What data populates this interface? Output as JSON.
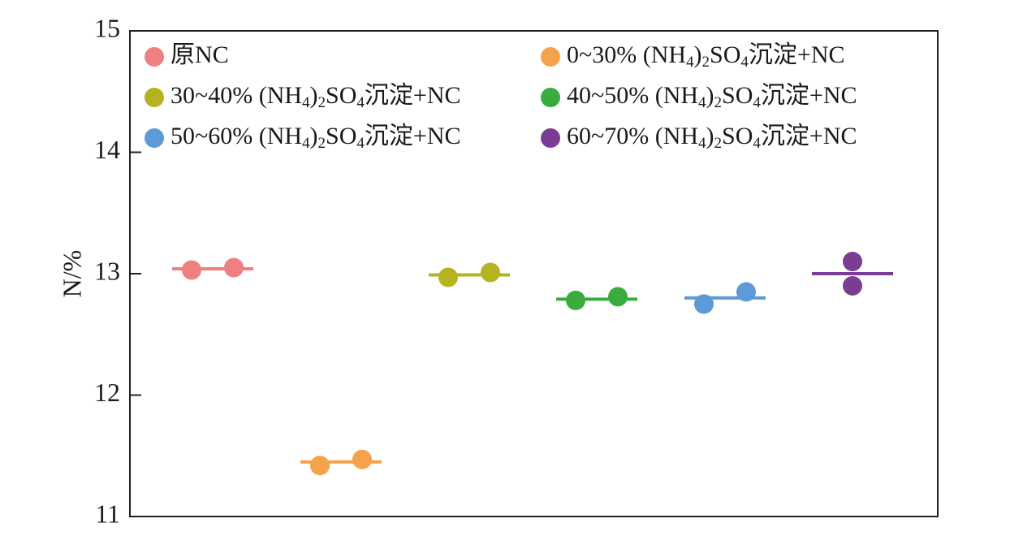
{
  "chart_data": {
    "type": "scatter",
    "ylabel": "N/%",
    "xlabel": "",
    "ylim": [
      11,
      15
    ],
    "yticks": [
      "11",
      "12",
      "13",
      "14",
      "15"
    ],
    "grid": false,
    "legend_position": "top",
    "series": [
      {
        "name_parts": [
          {
            "t": "原NC",
            "sub": false
          }
        ],
        "color": "#ef7f80",
        "points": [
          13.03,
          13.05
        ],
        "mean": 13.04
      },
      {
        "name_parts": [
          {
            "t": "0~30% (NH",
            "sub": false
          },
          {
            "t": "4",
            "sub": true
          },
          {
            "t": ")",
            "sub": false
          },
          {
            "t": "2",
            "sub": true
          },
          {
            "t": "SO",
            "sub": false
          },
          {
            "t": "4",
            "sub": true
          },
          {
            "t": "沉淀+NC",
            "sub": false
          }
        ],
        "color": "#f4a24b",
        "points": [
          11.42,
          11.47
        ],
        "mean": 11.45
      },
      {
        "name_parts": [
          {
            "t": "30~40% (NH",
            "sub": false
          },
          {
            "t": "4",
            "sub": true
          },
          {
            "t": ")",
            "sub": false
          },
          {
            "t": "2",
            "sub": true
          },
          {
            "t": "SO",
            "sub": false
          },
          {
            "t": "4",
            "sub": true
          },
          {
            "t": "沉淀+NC",
            "sub": false
          }
        ],
        "color": "#b5b322",
        "points": [
          12.97,
          13.01
        ],
        "mean": 12.99
      },
      {
        "name_parts": [
          {
            "t": "40~50% (NH",
            "sub": false
          },
          {
            "t": "4",
            "sub": true
          },
          {
            "t": ")",
            "sub": false
          },
          {
            "t": "2",
            "sub": true
          },
          {
            "t": "SO",
            "sub": false
          },
          {
            "t": "4",
            "sub": true
          },
          {
            "t": "沉淀+NC",
            "sub": false
          }
        ],
        "color": "#38ac3f",
        "points": [
          12.78,
          12.81
        ],
        "mean": 12.79
      },
      {
        "name_parts": [
          {
            "t": "50~60% (NH",
            "sub": false
          },
          {
            "t": "4",
            "sub": true
          },
          {
            "t": ")",
            "sub": false
          },
          {
            "t": "2",
            "sub": true
          },
          {
            "t": "SO",
            "sub": false
          },
          {
            "t": "4",
            "sub": true
          },
          {
            "t": "沉淀+NC",
            "sub": false
          }
        ],
        "color": "#5c9bd6",
        "points": [
          12.75,
          12.85
        ],
        "mean": 12.8
      },
      {
        "name_parts": [
          {
            "t": "60~70% (NH",
            "sub": false
          },
          {
            "t": "4",
            "sub": true
          },
          {
            "t": ")",
            "sub": false
          },
          {
            "t": "2",
            "sub": true
          },
          {
            "t": "SO",
            "sub": false
          },
          {
            "t": "4",
            "sub": true
          },
          {
            "t": "沉淀+NC",
            "sub": false
          }
        ],
        "color": "#7b3d93",
        "points": [
          13.1,
          12.9
        ],
        "mean": 13.0,
        "stacked": true
      }
    ]
  }
}
